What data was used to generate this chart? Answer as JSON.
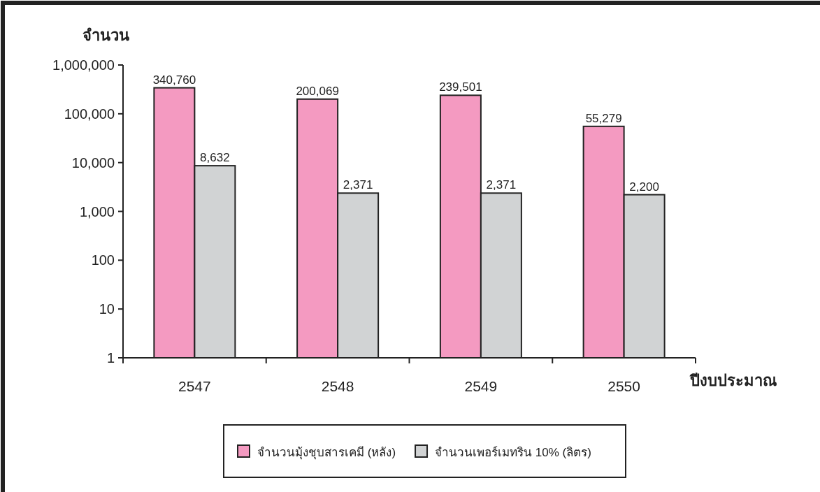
{
  "chart_data": {
    "type": "bar",
    "ylabel": "จำนวน",
    "xlabel": "ปีงบประมาณ",
    "categories": [
      "2547",
      "2548",
      "2549",
      "2550"
    ],
    "series": [
      {
        "name": "จำนวนมุ้งชุบสารเคมี (หลัง)",
        "color": "#f49ac1",
        "values": [
          340760,
          200069,
          239501,
          55279
        ],
        "value_labels": [
          "340,760",
          "200,069",
          "239,501",
          "55,279"
        ]
      },
      {
        "name": "จำนวนเพอร์เมทริน 10% (ลิตร)",
        "color": "#d1d3d4",
        "values": [
          8632,
          2371,
          2371,
          2200
        ],
        "value_labels": [
          "8,632",
          "2,371",
          "2,371",
          "2,200"
        ]
      }
    ],
    "log": true,
    "ylim": [
      1,
      1000000
    ],
    "yticks": [
      1,
      10,
      100,
      {
        "value": 1000,
        "label": "1,000"
      },
      {
        "value": 10000,
        "label": "10,000"
      },
      {
        "value": 100000,
        "label": "100,000"
      },
      {
        "value": 1000000,
        "label": "1,000,000"
      }
    ],
    "legend": "bottom",
    "grid": false
  }
}
